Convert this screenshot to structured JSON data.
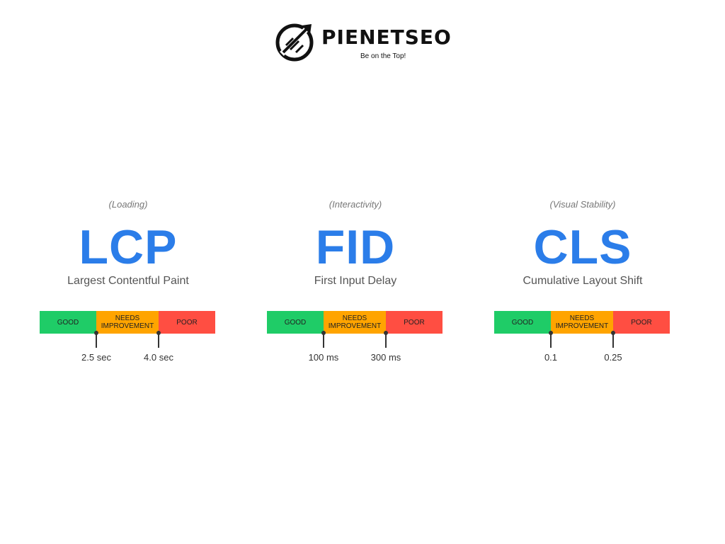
{
  "brand": {
    "name": "PIENETSEO",
    "tagline": "Be on the Top!"
  },
  "colors": {
    "accent": "#2b7de9",
    "good": "#1fcc67",
    "needs_improvement": "#ffa400",
    "poor": "#ff4e42"
  },
  "segments": {
    "good": "GOOD",
    "needs": "NEEDS IMPROVEMENT",
    "poor": "POOR"
  },
  "metrics": [
    {
      "category": "(Loading)",
      "abbr": "LCP",
      "name": "Largest Contentful Paint",
      "thresholds": [
        "2.5 sec",
        "4.0 sec"
      ]
    },
    {
      "category": "(Interactivity)",
      "abbr": "FID",
      "name": "First Input Delay",
      "thresholds": [
        "100 ms",
        "300 ms"
      ]
    },
    {
      "category": "(Visual Stability)",
      "abbr": "CLS",
      "name": "Cumulative Layout Shift",
      "thresholds": [
        "0.1",
        "0.25"
      ]
    }
  ]
}
